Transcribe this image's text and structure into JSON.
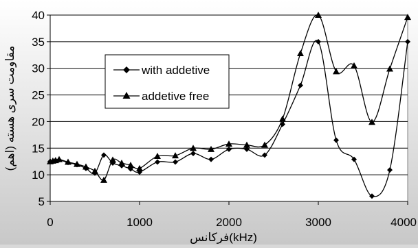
{
  "chart_data": {
    "type": "line",
    "title": "",
    "xlabel": "فرکانس(kHz)",
    "ylabel": "مقاومت سری هسته (اهم)",
    "xlim": [
      0,
      4000
    ],
    "ylim": [
      5,
      40
    ],
    "x_ticks": [
      "0",
      "1000",
      "2000",
      "3000",
      "4000"
    ],
    "y_ticks": [
      "5",
      "10",
      "15",
      "20",
      "25",
      "30",
      "35",
      "40"
    ],
    "grid": "horizontal",
    "legend_position": "inside-left",
    "series": [
      {
        "name": "with addetive",
        "marker": "diamond",
        "color": "#000000",
        "points": [
          [
            0,
            12.5
          ],
          [
            30,
            12.5
          ],
          [
            60,
            12.7
          ],
          [
            100,
            12.8
          ],
          [
            200,
            12.3
          ],
          [
            300,
            11.9
          ],
          [
            400,
            11.2
          ],
          [
            500,
            10.3
          ],
          [
            600,
            13.7
          ],
          [
            700,
            12.2
          ],
          [
            800,
            11.7
          ],
          [
            900,
            11.1
          ],
          [
            1000,
            10.5
          ],
          [
            1200,
            12.4
          ],
          [
            1400,
            12.4
          ],
          [
            1600,
            14.0
          ],
          [
            1800,
            12.9
          ],
          [
            2000,
            14.8
          ],
          [
            2200,
            14.8
          ],
          [
            2400,
            13.7
          ],
          [
            2600,
            19.5
          ],
          [
            2800,
            26.8
          ],
          [
            3000,
            35.0
          ],
          [
            3200,
            16.5
          ],
          [
            3400,
            12.9
          ],
          [
            3600,
            6.0
          ],
          [
            3800,
            10.9
          ],
          [
            4000,
            35.0
          ]
        ]
      },
      {
        "name": "addetive free",
        "marker": "triangle",
        "color": "#000000",
        "points": [
          [
            0,
            12.5
          ],
          [
            30,
            12.6
          ],
          [
            60,
            12.7
          ],
          [
            100,
            12.9
          ],
          [
            200,
            12.4
          ],
          [
            300,
            12.0
          ],
          [
            400,
            11.5
          ],
          [
            500,
            10.7
          ],
          [
            600,
            9.0
          ],
          [
            700,
            12.8
          ],
          [
            800,
            12.2
          ],
          [
            900,
            11.8
          ],
          [
            1000,
            11.2
          ],
          [
            1200,
            13.5
          ],
          [
            1400,
            13.6
          ],
          [
            1600,
            15.0
          ],
          [
            1800,
            14.8
          ],
          [
            2000,
            15.8
          ],
          [
            2200,
            15.6
          ],
          [
            2400,
            15.6
          ],
          [
            2600,
            20.5
          ],
          [
            2800,
            32.8
          ],
          [
            3000,
            40.0
          ],
          [
            3200,
            29.4
          ],
          [
            3400,
            30.5
          ],
          [
            3600,
            19.9
          ],
          [
            3800,
            29.9
          ],
          [
            4000,
            39.6
          ]
        ]
      }
    ]
  }
}
